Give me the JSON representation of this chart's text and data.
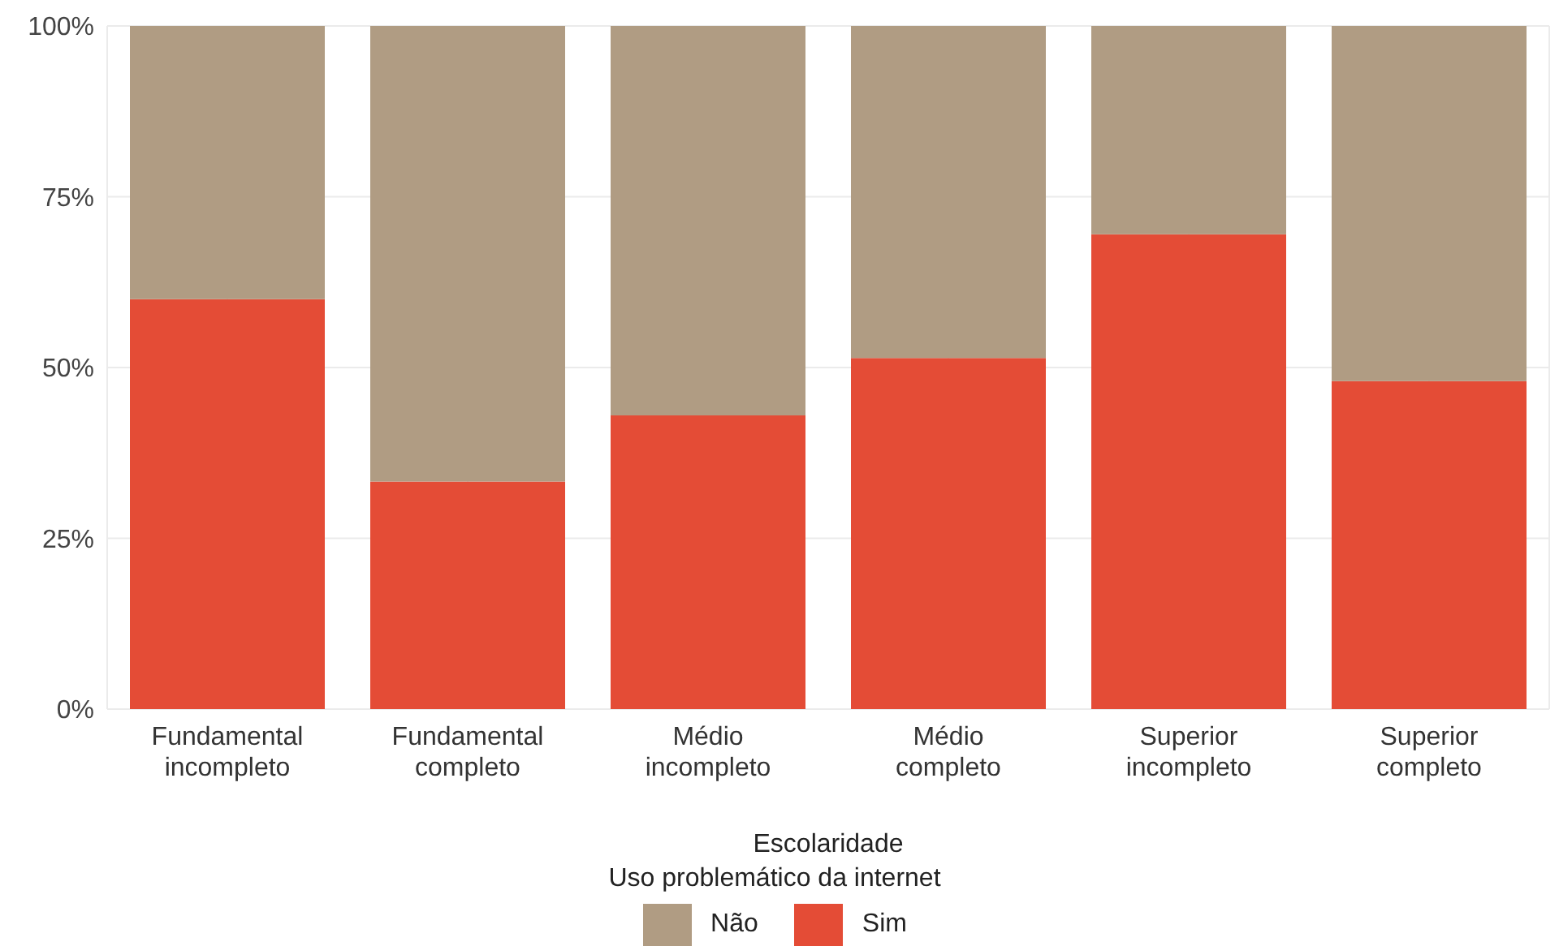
{
  "chart_data": {
    "type": "bar",
    "stacked": true,
    "xlabel": "Escolaridade",
    "legend_title": "Uso problemático da internet",
    "legend": "bottom",
    "grid": true,
    "categories": [
      "Fundamental incompleto",
      "Fundamental completo",
      "Médio incompleto",
      "Médio completo",
      "Superior incompleto",
      "Superior completo"
    ],
    "series": [
      {
        "name": "Sim",
        "color": "#e44c36",
        "values": [
          60,
          33.3,
          43,
          51.4,
          69.5,
          48
        ]
      },
      {
        "name": "Não",
        "color": "#b09c83",
        "values": [
          40,
          66.7,
          57,
          48.6,
          30.5,
          52
        ]
      }
    ],
    "ylim": [
      0,
      100
    ],
    "yticks": [
      {
        "value": 0,
        "label": "0%"
      },
      {
        "value": 25,
        "label": "25%"
      },
      {
        "value": 50,
        "label": "50%"
      },
      {
        "value": 75,
        "label": "75%"
      },
      {
        "value": 100,
        "label": "100%"
      }
    ]
  }
}
